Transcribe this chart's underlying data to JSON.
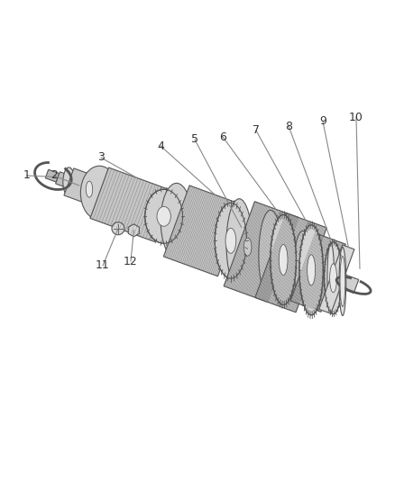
{
  "background_color": "#ffffff",
  "figure_width": 4.38,
  "figure_height": 5.33,
  "dpi": 100,
  "label_fontsize": 9,
  "line_color": "#888888",
  "text_color": "#333333",
  "gear_fill": "#d8d8d8",
  "gear_edge": "#555555",
  "shaft_fill": "#cccccc",
  "shaft_edge": "#555555",
  "hub_fill": "#e8e8e8",
  "ring_fill": "#e0e0e0"
}
